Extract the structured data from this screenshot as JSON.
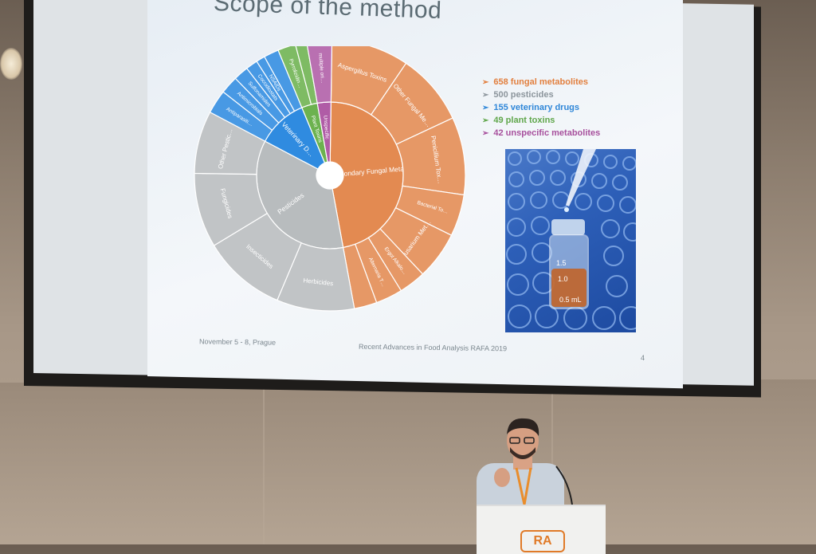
{
  "slide": {
    "title": "Scope of the method",
    "footer_date": "November 5 - 8, Prague",
    "footer_conf": "Recent Advances in Food Analysis RAFA 2019",
    "page_number": "4"
  },
  "legend": [
    {
      "text": "658 fungal metabolites",
      "color": "#e27f3e"
    },
    {
      "text": "500 pesticides",
      "color": "#8c959c"
    },
    {
      "text": "155 veterinary drugs",
      "color": "#2e86d8"
    },
    {
      "text": "49 plant toxins",
      "color": "#5fa64a"
    },
    {
      "text": "42 unspecific metabolites",
      "color": "#a7509d"
    }
  ],
  "sunburst": {
    "inner": [
      {
        "label": "Secondary Fungal Metabolites",
        "value": 658,
        "color": "#e38a51"
      },
      {
        "label": "Pesticides",
        "value": 500,
        "color": "#b8bcbe"
      },
      {
        "label": "Veterinary D…",
        "value": 155,
        "color": "#2f8be0"
      },
      {
        "label": "Plant Toxins",
        "value": 49,
        "color": "#6cb24f"
      },
      {
        "label": "Unspecific",
        "value": 42,
        "color": "#b05ca6"
      }
    ],
    "outer": [
      {
        "label": "Aspergillus Toxins",
        "value": 130,
        "group": 0
      },
      {
        "label": "Other Fungal Me…",
        "value": 120,
        "group": 0
      },
      {
        "label": "Penicillium Tox…",
        "value": 130,
        "group": 0
      },
      {
        "label": "Bacterial To…",
        "value": 70,
        "group": 0
      },
      {
        "label": "Fusarium Met…",
        "value": 80,
        "group": 0
      },
      {
        "label": "Ergot Alkalo…",
        "value": 45,
        "group": 0
      },
      {
        "label": "Alternaria T…",
        "value": 45,
        "group": 0
      },
      {
        "label": "",
        "value": 38,
        "group": 0
      },
      {
        "label": "Herbicides",
        "value": 130,
        "group": 1
      },
      {
        "label": "Insecticides",
        "value": 140,
        "group": 1
      },
      {
        "label": "Fungicides",
        "value": 125,
        "group": 1
      },
      {
        "label": "Other Pestic…",
        "value": 105,
        "group": 1
      },
      {
        "label": "Antiparasiti…",
        "value": 40,
        "group": 2
      },
      {
        "label": "Antimicrobials",
        "value": 30,
        "group": 2
      },
      {
        "label": "Sulfonamides",
        "value": 25,
        "group": 2
      },
      {
        "label": "Coccidiostats",
        "value": 20,
        "group": 2
      },
      {
        "label": "NSAIDs",
        "value": 15,
        "group": 2
      },
      {
        "label": "",
        "value": 25,
        "group": 2
      },
      {
        "label": "Pyrrolizidin…",
        "value": 30,
        "group": 3
      },
      {
        "label": "",
        "value": 19,
        "group": 3
      },
      {
        "label": "multiple ori…",
        "value": 42,
        "group": 4
      }
    ]
  },
  "photo": {
    "mark_15": "1.5",
    "mark_10": "1.0",
    "mark_05": "0.5 mL"
  },
  "podium": {
    "logo": "RA"
  }
}
